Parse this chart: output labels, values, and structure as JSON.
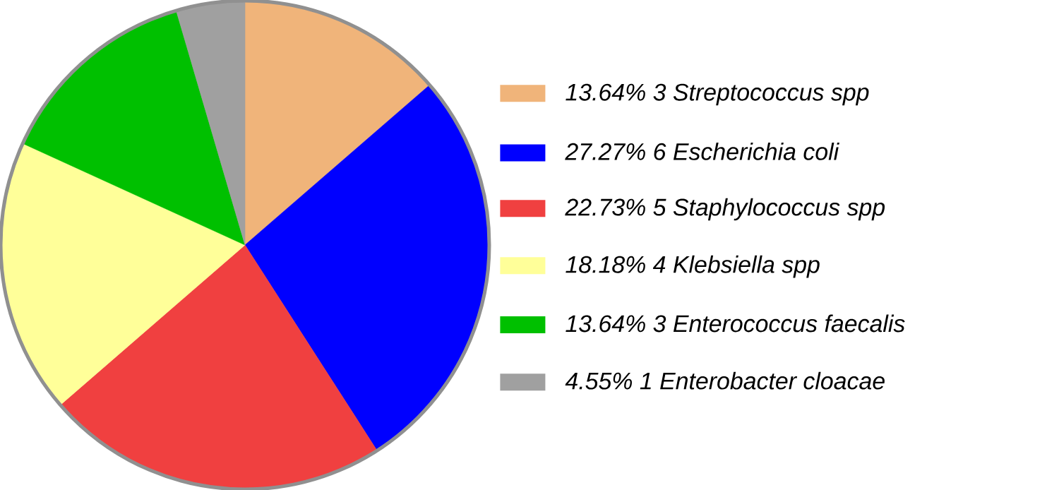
{
  "chart_data": {
    "type": "pie",
    "legend": "right",
    "categories": [
      "13.64%  3 Streptococcus spp",
      "27.27%  6 Escherichia coli",
      "22.73%  5 Staphylococcus spp",
      "18.18%  4 Klebsiella spp",
      "13.64%  3 Enterococcus faecalis",
      "4.55%  1 Enterobacter cloacae"
    ],
    "values": [
      3,
      6,
      5,
      4,
      3,
      1
    ],
    "colors": [
      "#f0b47a",
      "#0000ff",
      "#f04040",
      "#ffff99",
      "#00c000",
      "#a0a0a0"
    ]
  }
}
